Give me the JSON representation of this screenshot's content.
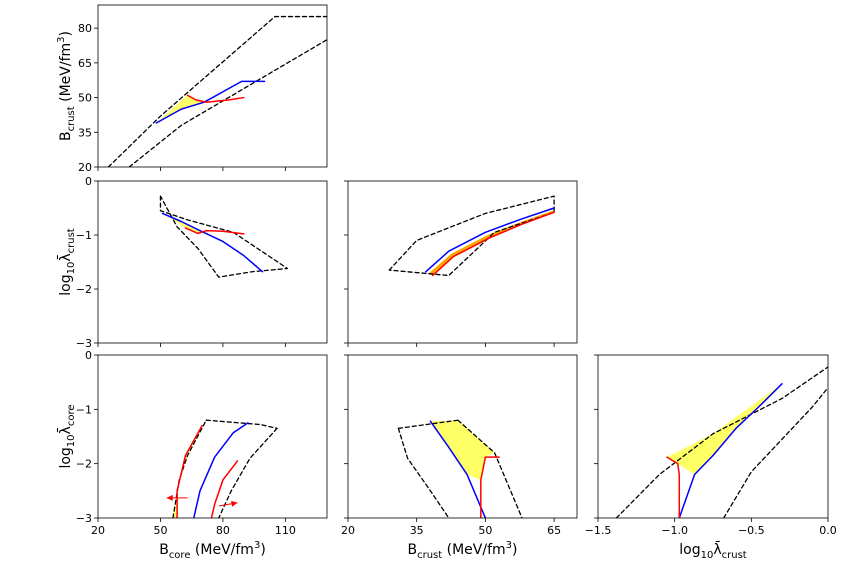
{
  "chart_data": [
    {
      "type": "contour",
      "panel": "bcore-bcrust",
      "xlim": [
        20,
        130
      ],
      "ylim": [
        20,
        90
      ],
      "xticks": [
        "20",
        "50",
        "80",
        "110"
      ],
      "xtick_values": [
        20,
        50,
        80,
        110
      ],
      "show_xticks": false,
      "yticks": [
        "20",
        "35",
        "50",
        "65",
        "80"
      ],
      "ytick_values": [
        20,
        35,
        50,
        65,
        80
      ],
      "show_yticks": true,
      "ylabel": "B",
      "ylabel_sub": "crust",
      "ylabel_unit": " (MeV/fm",
      "ylabel_sup": "3",
      "ylabel_end": ")",
      "series": [
        {
          "name": "dashed-outer-bound",
          "color": "#000000",
          "dashed": true,
          "x": [
            25,
            50,
            105,
            130
          ],
          "y": [
            20,
            42,
            85,
            85
          ]
        },
        {
          "name": "dashed-inner-bound",
          "color": "#000000",
          "dashed": true,
          "x": [
            35,
            60,
            130
          ],
          "y": [
            20,
            38,
            75
          ]
        },
        {
          "name": "blue-contour",
          "color": "#0000ff",
          "x": [
            48,
            60,
            71,
            89,
            100
          ],
          "y": [
            39,
            45,
            48,
            57,
            57
          ]
        },
        {
          "name": "red-contour",
          "color": "#ff0000",
          "x": [
            63,
            67,
            72,
            83,
            90
          ],
          "y": [
            51,
            49,
            48,
            49,
            50
          ]
        },
        {
          "name": "yellow-region",
          "fill": "#ffff66",
          "x": [
            48,
            63,
            67,
            71,
            60
          ],
          "y": [
            39,
            51,
            49,
            48,
            45
          ]
        }
      ]
    },
    {
      "type": "contour",
      "panel": "bcore-lambdacrust",
      "xlim": [
        20,
        130
      ],
      "ylim": [
        -3,
        0
      ],
      "xticks": [
        "20",
        "50",
        "80",
        "110"
      ],
      "xtick_values": [
        20,
        50,
        80,
        110
      ],
      "show_xticks": false,
      "yticks": [
        "−3",
        "−2",
        "−1",
        "0"
      ],
      "ytick_values": [
        -3,
        -2,
        -1,
        0
      ],
      "show_yticks": true,
      "ylabel": "log",
      "ylabel_sub": "10",
      "ylabel_unit": "λ̄",
      "ylabel_sub2": "crust",
      "series": [
        {
          "name": "dashed-boundary",
          "color": "#000000",
          "dashed": true,
          "closed": true,
          "x": [
            50,
            50,
            63,
            85,
            111,
            94,
            78,
            68,
            58
          ],
          "y": [
            -0.28,
            -0.55,
            -0.72,
            -0.95,
            -1.62,
            -1.68,
            -1.78,
            -1.25,
            -0.85
          ]
        },
        {
          "name": "blue-contour",
          "color": "#0000ff",
          "x": [
            51,
            60,
            69,
            80,
            90,
            99
          ],
          "y": [
            -0.6,
            -0.75,
            -0.92,
            -1.12,
            -1.38,
            -1.68
          ]
        },
        {
          "name": "red-contour",
          "color": "#ff0000",
          "x": [
            62,
            68,
            72,
            80,
            90
          ],
          "y": [
            -0.87,
            -0.97,
            -0.92,
            -0.93,
            -0.98
          ]
        },
        {
          "name": "yellow-region",
          "fill": "#ffff66",
          "x": [
            51,
            60,
            69,
            68,
            62
          ],
          "y": [
            -0.6,
            -0.75,
            -0.92,
            -0.97,
            -0.87
          ]
        }
      ]
    },
    {
      "type": "contour",
      "panel": "bcrust-lambdacrust",
      "xlim": [
        20,
        70
      ],
      "ylim": [
        -3,
        0
      ],
      "xticks": [
        "20",
        "35",
        "50",
        "65"
      ],
      "xtick_values": [
        20,
        35,
        50,
        65
      ],
      "show_xticks": false,
      "yticks": [
        "−3",
        "−2",
        "−1",
        "0"
      ],
      "ytick_values": [
        -3,
        -2,
        -1,
        0
      ],
      "show_yticks": false,
      "series": [
        {
          "name": "dashed-boundary",
          "color": "#000000",
          "dashed": true,
          "closed": true,
          "x": [
            29,
            35,
            50,
            65,
            65,
            52,
            42
          ],
          "y": [
            -1.65,
            -1.1,
            -0.6,
            -0.28,
            -0.58,
            -0.95,
            -1.75
          ]
        },
        {
          "name": "blue-contour",
          "color": "#0000ff",
          "x": [
            37,
            42,
            50,
            58,
            65
          ],
          "y": [
            -1.68,
            -1.3,
            -0.95,
            -0.7,
            -0.5
          ]
        },
        {
          "name": "red-contour",
          "color": "#ff0000",
          "x": [
            38.5,
            43,
            51,
            58,
            65
          ],
          "y": [
            -1.75,
            -1.4,
            -1.05,
            -0.8,
            -0.58
          ]
        },
        {
          "name": "orange-band",
          "fill": "#ffa500",
          "x": [
            37.5,
            42.5,
            50.5,
            58,
            65,
            65,
            58,
            51,
            43,
            38.5
          ],
          "y": [
            -1.72,
            -1.35,
            -1.0,
            -0.75,
            -0.54,
            -0.58,
            -0.8,
            -1.05,
            -1.4,
            -1.75
          ]
        }
      ]
    },
    {
      "type": "contour",
      "panel": "bcore-lambdacore",
      "xlim": [
        20,
        130
      ],
      "ylim": [
        -3,
        0
      ],
      "xticks": [
        "20",
        "50",
        "80",
        "110"
      ],
      "xtick_values": [
        20,
        50,
        80,
        110
      ],
      "show_xticks": true,
      "yticks": [
        "−3",
        "−2",
        "−1",
        "0"
      ],
      "ytick_values": [
        -3,
        -2,
        -1,
        0
      ],
      "show_yticks": true,
      "xlabel": "B",
      "xlabel_sub": "core",
      "xlabel_unit": " (MeV/fm",
      "xlabel_sup": "3",
      "xlabel_end": ")",
      "ylabel": "log",
      "ylabel_sub": "10",
      "ylabel_unit": "λ̄",
      "ylabel_sub2": "core",
      "series": [
        {
          "name": "dashed-left",
          "color": "#000000",
          "dashed": true,
          "x": [
            56,
            59,
            63,
            72
          ],
          "y": [
            -3,
            -2.3,
            -1.85,
            -1.2
          ]
        },
        {
          "name": "dashed-top",
          "color": "#000000",
          "dashed": true,
          "x": [
            72,
            98,
            106
          ],
          "y": [
            -1.2,
            -1.28,
            -1.35
          ]
        },
        {
          "name": "dashed-right",
          "color": "#000000",
          "dashed": true,
          "x": [
            106,
            93,
            84,
            78
          ],
          "y": [
            -1.35,
            -1.9,
            -2.5,
            -3
          ]
        },
        {
          "name": "blue-contour",
          "color": "#0000ff",
          "x": [
            66,
            69,
            76,
            85,
            92
          ],
          "y": [
            -3,
            -2.5,
            -1.88,
            -1.43,
            -1.25
          ]
        },
        {
          "name": "red-contour-left",
          "color": "#ff0000",
          "x": [
            58,
            58,
            62,
            70
          ],
          "y": [
            -3,
            -2.5,
            -1.85,
            -1.3
          ]
        },
        {
          "name": "red-contour-right",
          "color": "#ff0000",
          "x": [
            74.5,
            76,
            80,
            87
          ],
          "y": [
            -3,
            -2.75,
            -2.3,
            -1.95
          ]
        },
        {
          "name": "yellow-region",
          "fill": "#ffff66",
          "x": [
            56,
            59,
            63,
            70,
            62,
            58,
            58
          ],
          "y": [
            -3,
            -2.3,
            -1.85,
            -1.3,
            -1.85,
            -2.5,
            -3
          ]
        }
      ],
      "arrows": [
        {
          "name": "left-arrow",
          "color": "#ff0000",
          "from": [
            63,
            -2.63
          ],
          "to": [
            53,
            -2.63
          ]
        },
        {
          "name": "right-arrow",
          "color": "#ff0000",
          "from": [
            78,
            -2.78
          ],
          "to": [
            87,
            -2.72
          ]
        }
      ]
    },
    {
      "type": "contour",
      "panel": "bcrust-lambdacore",
      "xlim": [
        20,
        70
      ],
      "ylim": [
        -3,
        0
      ],
      "xticks": [
        "20",
        "35",
        "50",
        "65"
      ],
      "xtick_values": [
        20,
        35,
        50,
        65
      ],
      "show_xticks": true,
      "yticks": [
        "−3",
        "−2",
        "−1",
        "0"
      ],
      "ytick_values": [
        -3,
        -2,
        -1,
        0
      ],
      "show_yticks": false,
      "xlabel": "B",
      "xlabel_sub": "crust",
      "xlabel_unit": " (MeV/fm",
      "xlabel_sup": "3",
      "xlabel_end": ")",
      "series": [
        {
          "name": "dashed-left",
          "color": "#000000",
          "dashed": true,
          "x": [
            31,
            33,
            38,
            42
          ],
          "y": [
            -1.35,
            -1.9,
            -2.5,
            -3
          ]
        },
        {
          "name": "dashed-top",
          "color": "#000000",
          "dashed": true,
          "x": [
            31,
            44
          ],
          "y": [
            -1.35,
            -1.2
          ]
        },
        {
          "name": "dashed-right",
          "color": "#000000",
          "dashed": true,
          "x": [
            44,
            52,
            55,
            58
          ],
          "y": [
            -1.2,
            -1.8,
            -2.4,
            -3
          ]
        },
        {
          "name": "blue-contour",
          "color": "#0000ff",
          "x": [
            38,
            42,
            46,
            50
          ],
          "y": [
            -1.22,
            -1.7,
            -2.2,
            -3
          ]
        },
        {
          "name": "red-contour",
          "color": "#ff0000",
          "x": [
            49,
            49,
            50,
            53
          ],
          "y": [
            -3,
            -2.3,
            -1.88,
            -1.88
          ]
        },
        {
          "name": "yellow-region",
          "fill": "#ffff66",
          "x": [
            38,
            44,
            52,
            50,
            49,
            46,
            42
          ],
          "y": [
            -1.22,
            -1.2,
            -1.8,
            -1.88,
            -2.3,
            -2.2,
            -1.7
          ]
        }
      ]
    },
    {
      "type": "contour",
      "panel": "lambdacrust-lambdacore",
      "xlim": [
        -1.5,
        0
      ],
      "ylim": [
        -3,
        0
      ],
      "xticks": [
        "−1.5",
        "−1.0",
        "−0.5",
        "0.0"
      ],
      "xtick_values": [
        -1.5,
        -1.0,
        -0.5,
        0.0
      ],
      "show_xticks": true,
      "yticks": [
        "−3",
        "−2",
        "−1",
        "0"
      ],
      "ytick_values": [
        -3,
        -2,
        -1,
        0
      ],
      "show_yticks": false,
      "xlabel": "log",
      "xlabel_sub": "10",
      "xlabel_unit": "λ̄",
      "xlabel_sub2": "crust",
      "series": [
        {
          "name": "dashed-upper",
          "color": "#000000",
          "dashed": true,
          "x": [
            -1.38,
            -1.1,
            -0.75,
            -0.3,
            0
          ],
          "y": [
            -3,
            -2.2,
            -1.45,
            -0.8,
            -0.22
          ]
        },
        {
          "name": "dashed-lower",
          "color": "#000000",
          "dashed": true,
          "x": [
            -0.68,
            -0.5,
            -0.3,
            -0.1,
            0
          ],
          "y": [
            -3,
            -2.15,
            -1.55,
            -0.95,
            -0.6
          ]
        },
        {
          "name": "blue-contour",
          "color": "#0000ff",
          "x": [
            -0.97,
            -0.87,
            -0.75,
            -0.6,
            -0.45,
            -0.3
          ],
          "y": [
            -3,
            -2.2,
            -1.85,
            -1.35,
            -0.95,
            -0.53
          ]
        },
        {
          "name": "red-contour",
          "color": "#ff0000",
          "x": [
            -1.05,
            -0.98,
            -0.97,
            -0.97
          ],
          "y": [
            -1.88,
            -2.0,
            -2.2,
            -3
          ]
        },
        {
          "name": "yellow-region",
          "fill": "#ffff66",
          "x": [
            -1.05,
            -0.75,
            -0.3,
            -0.45,
            -0.6,
            -0.75,
            -0.87,
            -0.98
          ],
          "y": [
            -1.88,
            -1.45,
            -0.53,
            -0.95,
            -1.35,
            -1.85,
            -2.2,
            -2.0
          ]
        }
      ]
    }
  ]
}
